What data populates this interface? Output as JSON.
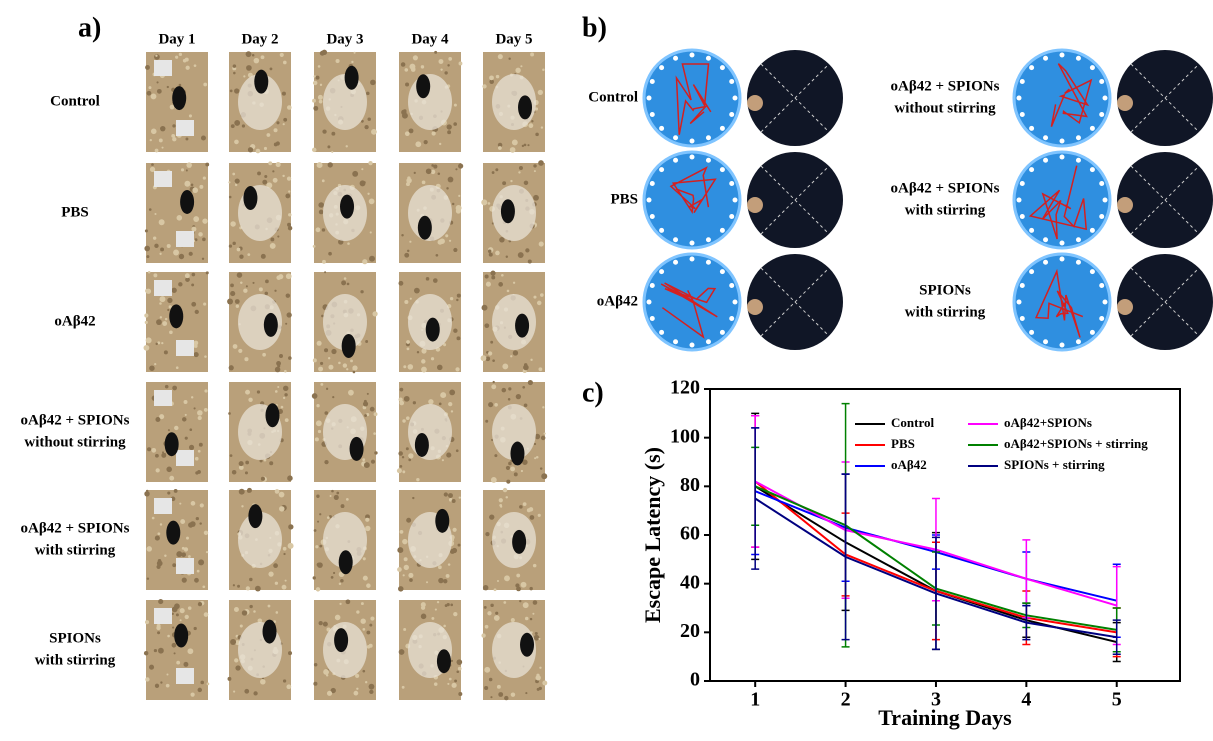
{
  "panel_a": {
    "label": "a)",
    "days": [
      "Day 1",
      "Day 2",
      "Day 3",
      "Day 4",
      "Day 5"
    ],
    "rows": [
      [
        "Control"
      ],
      [
        "PBS"
      ],
      [
        "oAβ42"
      ],
      [
        "oAβ42 + SPIONs",
        "without stirring"
      ],
      [
        "oAβ42 + SPIONs",
        "with stirring"
      ],
      [
        "SPIONs",
        "with stirring"
      ]
    ]
  },
  "panel_b": {
    "label": "b)",
    "left_rows": [
      [
        "Control"
      ],
      [
        "PBS"
      ],
      [
        "oAβ42"
      ]
    ],
    "right_rows": [
      [
        "oAβ42 + SPIONs",
        "without stirring"
      ],
      [
        "oAβ42 + SPIONs",
        "with stirring"
      ],
      [
        "SPIONs",
        "with stirring"
      ]
    ]
  },
  "chart_data": {
    "type": "line",
    "panel_label": "c)",
    "x_label": "Training Days",
    "y_label": "Escape Latency (s)",
    "x": [
      1,
      2,
      3,
      4,
      5
    ],
    "xlim": [
      0.5,
      5.7
    ],
    "ylim": [
      0,
      120
    ],
    "xticks": [
      1,
      2,
      3,
      4,
      5
    ],
    "yticks": [
      0,
      20,
      40,
      60,
      80,
      100,
      120
    ],
    "series": [
      {
        "name": "Control",
        "color": "#000000",
        "values": [
          80,
          57,
          37,
          25,
          16
        ],
        "errors": [
          30,
          28,
          24,
          7,
          8
        ]
      },
      {
        "name": "PBS",
        "color": "#ff0000",
        "values": [
          82,
          52,
          37,
          26,
          20
        ],
        "errors": [
          27,
          17,
          20,
          11,
          10
        ]
      },
      {
        "name": "oAβ42",
        "color": "#0000ff",
        "values": [
          78,
          63,
          53,
          42,
          33
        ],
        "errors": [
          26,
          22,
          7,
          11,
          15
        ]
      },
      {
        "name": "oAβ42+SPIONs",
        "color": "#ff00ff",
        "values": [
          82,
          62,
          54,
          42,
          31
        ],
        "errors": [
          27,
          28,
          21,
          16,
          16
        ]
      },
      {
        "name": "oAβ42+SPIONs + stirring",
        "color": "#008000",
        "values": [
          80,
          64,
          38,
          27,
          21
        ],
        "errors": [
          16,
          50,
          15,
          5,
          9
        ]
      },
      {
        "name": "SPIONs + stirring",
        "color": "#000080",
        "values": [
          75,
          51,
          36,
          24,
          18
        ],
        "errors": [
          29,
          34,
          23,
          7,
          7
        ]
      }
    ]
  }
}
